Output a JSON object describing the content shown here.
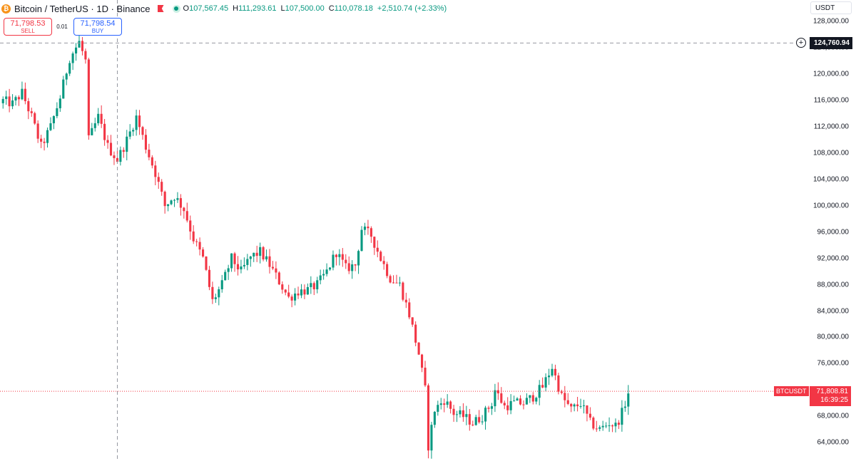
{
  "header": {
    "symbol": "Bitcoin / TetherUS · 1D · Binance",
    "coin_icon": "bitcoin-icon",
    "open_label": "O",
    "open": "107,567.45",
    "high_label": "H",
    "high": "111,293.61",
    "low_label": "L",
    "low": "107,500.00",
    "close_label": "C",
    "close": "110,078.18",
    "change": "+2,510.74 (+2.33%)"
  },
  "trade": {
    "sell_price": "71,798.53",
    "sell_label": "SELL",
    "spread": "0.01",
    "buy_price": "71,798.54",
    "buy_label": "BUY"
  },
  "currency": "USDT",
  "crosshair_price": "124,760.94",
  "last": {
    "symbol": "BTCUSDT",
    "price": "71,808.81",
    "countdown": "16:39:25"
  },
  "colors": {
    "up": "#089981",
    "down": "#f23645",
    "buy": "#2962ff"
  },
  "chart_data": {
    "type": "candlestick",
    "ylim": [
      61200,
      131300
    ],
    "yticks": [
      64000,
      68000,
      72000,
      76000,
      80000,
      84000,
      88000,
      92000,
      96000,
      100000,
      104000,
      108000,
      112000,
      116000,
      120000,
      124000,
      128000
    ],
    "ytick_labels": [
      "64,000.00",
      "68,000.00",
      "72,000.00",
      "76,000.00",
      "80,000.00",
      "84,000.00",
      "88,000.00",
      "92,000.00",
      "96,000.00",
      "100,000.00",
      "104,000.00",
      "108,000.00",
      "112,000.00",
      "116,000.00",
      "120,000.00",
      "124,000.00",
      "128,000.00"
    ],
    "crosshair_value": 124760.94,
    "last_value": 71808.81,
    "close_path": [
      [
        0,
        116000
      ],
      [
        3,
        115500
      ],
      [
        6,
        117200
      ],
      [
        9,
        113500
      ],
      [
        12,
        109000
      ],
      [
        15,
        112000
      ],
      [
        18,
        116500
      ],
      [
        21,
        122500
      ],
      [
        24,
        124900
      ],
      [
        26,
        122000
      ],
      [
        27,
        110000
      ],
      [
        30,
        113500
      ],
      [
        33,
        109000
      ],
      [
        36,
        107000
      ],
      [
        39,
        110000
      ],
      [
        42,
        113500
      ],
      [
        45,
        109000
      ],
      [
        48,
        105000
      ],
      [
        51,
        100000
      ],
      [
        54,
        101500
      ],
      [
        57,
        99500
      ],
      [
        60,
        95000
      ],
      [
        63,
        92000
      ],
      [
        66,
        85500
      ],
      [
        69,
        88000
      ],
      [
        72,
        92000
      ],
      [
        75,
        90000
      ],
      [
        78,
        92200
      ],
      [
        81,
        93000
      ],
      [
        84,
        91000
      ],
      [
        87,
        88500
      ],
      [
        90,
        86000
      ],
      [
        93,
        87000
      ],
      [
        96,
        87200
      ],
      [
        99,
        88000
      ],
      [
        102,
        90000
      ],
      [
        105,
        93000
      ],
      [
        108,
        90500
      ],
      [
        111,
        91000
      ],
      [
        113,
        96500
      ],
      [
        116,
        95500
      ],
      [
        119,
        92000
      ],
      [
        122,
        89000
      ],
      [
        125,
        88000
      ],
      [
        128,
        83500
      ],
      [
        131,
        77500
      ],
      [
        133,
        72000
      ],
      [
        134,
        63500
      ],
      [
        136,
        69000
      ],
      [
        139,
        70500
      ],
      [
        142,
        68500
      ],
      [
        145,
        68000
      ],
      [
        148,
        67000
      ],
      [
        151,
        68000
      ],
      [
        154,
        70000
      ],
      [
        155,
        72000
      ],
      [
        158,
        69500
      ],
      [
        161,
        70000
      ],
      [
        164,
        70000
      ],
      [
        167,
        71000
      ],
      [
        170,
        72500
      ],
      [
        173,
        75500
      ],
      [
        176,
        71000
      ],
      [
        179,
        69000
      ],
      [
        182,
        70000
      ],
      [
        185,
        67000
      ],
      [
        188,
        66000
      ],
      [
        191,
        67000
      ],
      [
        193,
        66500
      ],
      [
        195,
        68500
      ],
      [
        197,
        71500
      ]
    ]
  }
}
